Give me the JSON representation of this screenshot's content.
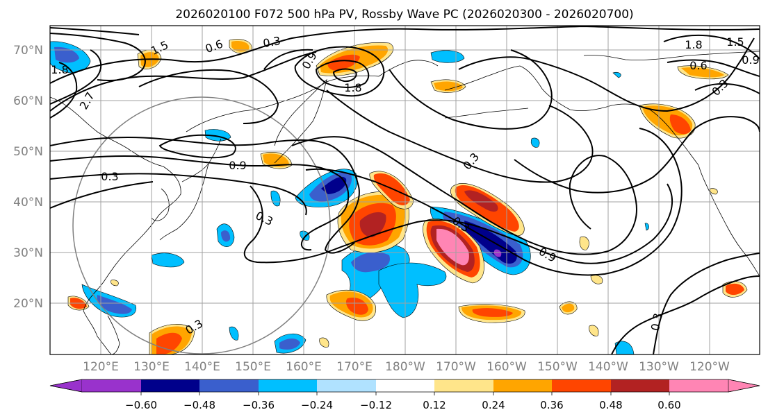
{
  "title": "2026020100 F072 500 hPa PV, Rossby Wave PC (2026020300 - 2026020700)",
  "lat_labels": [
    "70°N",
    "60°N",
    "50°N",
    "40°N",
    "30°N",
    "20°N"
  ],
  "lon_labels": [
    "120°E",
    "130°E",
    "140°E",
    "150°E",
    "160°E",
    "170°E",
    "180°W",
    "170°W",
    "160°W",
    "150°W",
    "140°W",
    "130°W",
    "120°W"
  ],
  "colorbar": {
    "tick_labels": [
      "−0.60",
      "−0.48",
      "−0.36",
      "−0.24",
      "−0.12",
      "0.12",
      "0.24",
      "0.36",
      "0.48",
      "0.60"
    ],
    "colors": [
      "#9932cc",
      "#00008b",
      "#3a5fcd",
      "#00bfff",
      "#b0e2ff",
      "#ffffff",
      "#ffe58a",
      "#ffa500",
      "#ff4500",
      "#b22222",
      "#ff85b4"
    ]
  },
  "contour_labels": [
    "0.3",
    "0.6",
    "0.9",
    "1.5",
    "1.8",
    "2.7",
    "0.3",
    "0.9",
    "0.3",
    "0.3",
    "0.3",
    "0.9",
    "1.8",
    "0.6",
    "0.9",
    "0.3",
    "0.3",
    "0.3",
    "1.5",
    "1.8"
  ]
}
